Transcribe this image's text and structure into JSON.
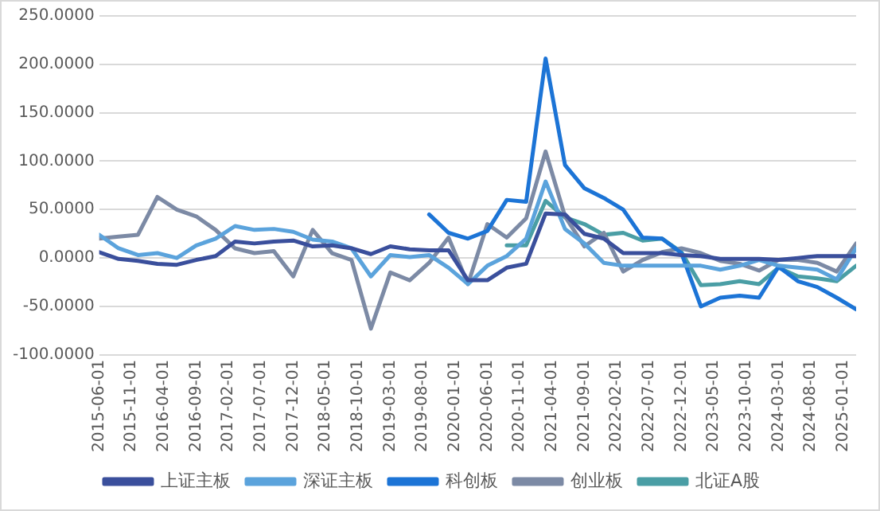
{
  "chart_data": {
    "type": "line",
    "x": [
      "2015-06-01",
      "2015-09-01",
      "2015-12-01",
      "2016-03-01",
      "2016-06-01",
      "2016-09-01",
      "2016-12-01",
      "2017-03-01",
      "2017-06-01",
      "2017-09-01",
      "2017-12-01",
      "2018-03-01",
      "2018-06-01",
      "2018-09-01",
      "2018-12-01",
      "2019-03-01",
      "2019-06-01",
      "2019-09-01",
      "2019-12-01",
      "2020-03-01",
      "2020-06-01",
      "2020-09-01",
      "2020-12-01",
      "2021-03-01",
      "2021-06-01",
      "2021-09-01",
      "2021-12-01",
      "2022-03-01",
      "2022-06-01",
      "2022-09-01",
      "2022-12-01",
      "2023-03-01",
      "2023-06-01",
      "2023-09-01",
      "2023-12-01",
      "2024-03-01",
      "2024-06-01",
      "2024-09-01",
      "2024-12-01",
      "2025-03-01"
    ],
    "series": [
      {
        "name": "上证主板",
        "color": "#3a4f9c",
        "values": [
          6,
          -1,
          -3,
          -6,
          -7,
          -2,
          2,
          17,
          15,
          17,
          18,
          12,
          13,
          10,
          4,
          12,
          9,
          8,
          8,
          -23,
          -23,
          -10,
          -6,
          46,
          45,
          25,
          20,
          5,
          5,
          5,
          3,
          2,
          -1,
          -1,
          -1,
          -2,
          0,
          2,
          2,
          2
        ]
      },
      {
        "name": "深证主板",
        "color": "#5ba3dc",
        "values": [
          24,
          10,
          3,
          5,
          0,
          13,
          20,
          33,
          29,
          30,
          27,
          19,
          17,
          10,
          -19,
          3,
          1,
          3,
          -10,
          -27,
          -8,
          2,
          20,
          79,
          30,
          15,
          -5,
          -8,
          -8,
          -8,
          -8,
          -8,
          -12,
          -8,
          -2,
          -8,
          -10,
          -12,
          -22,
          10
        ]
      },
      {
        "name": "科创板",
        "color": "#1c74d6",
        "values": [
          null,
          null,
          null,
          null,
          null,
          null,
          null,
          null,
          null,
          null,
          null,
          null,
          null,
          null,
          null,
          null,
          null,
          45,
          26,
          20,
          28,
          60,
          58,
          206,
          96,
          72,
          62,
          50,
          21,
          20,
          5,
          -50,
          -41,
          -39,
          -41,
          -9,
          -24,
          -30,
          -41,
          -53
        ]
      },
      {
        "name": "创业板",
        "color": "#7c8aa5",
        "values": [
          20,
          22,
          24,
          63,
          50,
          43,
          29,
          10,
          5,
          7,
          -19,
          29,
          5,
          -2,
          -73,
          -15,
          -23,
          -5,
          21,
          -27,
          35,
          21,
          41,
          110,
          43,
          12,
          26,
          -14,
          -2,
          6,
          10,
          5,
          -3,
          -6,
          -13,
          -2,
          -2,
          -5,
          -14,
          15
        ]
      },
      {
        "name": "北证A股",
        "color": "#4a9ea5",
        "values": [
          null,
          null,
          null,
          null,
          null,
          null,
          null,
          null,
          null,
          null,
          null,
          null,
          null,
          null,
          null,
          null,
          null,
          null,
          null,
          null,
          null,
          13,
          13,
          59,
          42,
          35,
          24,
          26,
          18,
          20,
          6,
          -28,
          -27,
          -24,
          -27,
          -10,
          -19,
          -21,
          -24,
          -8
        ]
      }
    ],
    "xlim": [
      "2015-06-01",
      "2025-03-01"
    ],
    "xticks": [
      "2015-06-01",
      "2015-11-01",
      "2016-04-01",
      "2016-09-01",
      "2017-02-01",
      "2017-07-01",
      "2017-12-01",
      "2018-05-01",
      "2018-10-01",
      "2019-03-01",
      "2019-08-01",
      "2020-01-01",
      "2020-06-01",
      "2020-11-01",
      "2021-04-01",
      "2021-09-01",
      "2022-02-01",
      "2022-07-01",
      "2022-12-01",
      "2023-05-01",
      "2023-10-01",
      "2024-03-01",
      "2024-08-01",
      "2025-01-01"
    ],
    "ylim": [
      -100,
      250
    ],
    "yticks": [
      {
        "value": -100,
        "label": "-100.0000"
      },
      {
        "value": -50,
        "label": "-50.0000"
      },
      {
        "value": 0,
        "label": "0.0000"
      },
      {
        "value": 50,
        "label": "50.0000"
      },
      {
        "value": 100,
        "label": "100.0000"
      },
      {
        "value": 150,
        "label": "150.0000"
      },
      {
        "value": 200,
        "label": "200.0000"
      },
      {
        "value": 250,
        "label": "250.0000"
      }
    ],
    "grid": "y",
    "legend": "bottom",
    "marker": "none",
    "line_style": "solid"
  }
}
